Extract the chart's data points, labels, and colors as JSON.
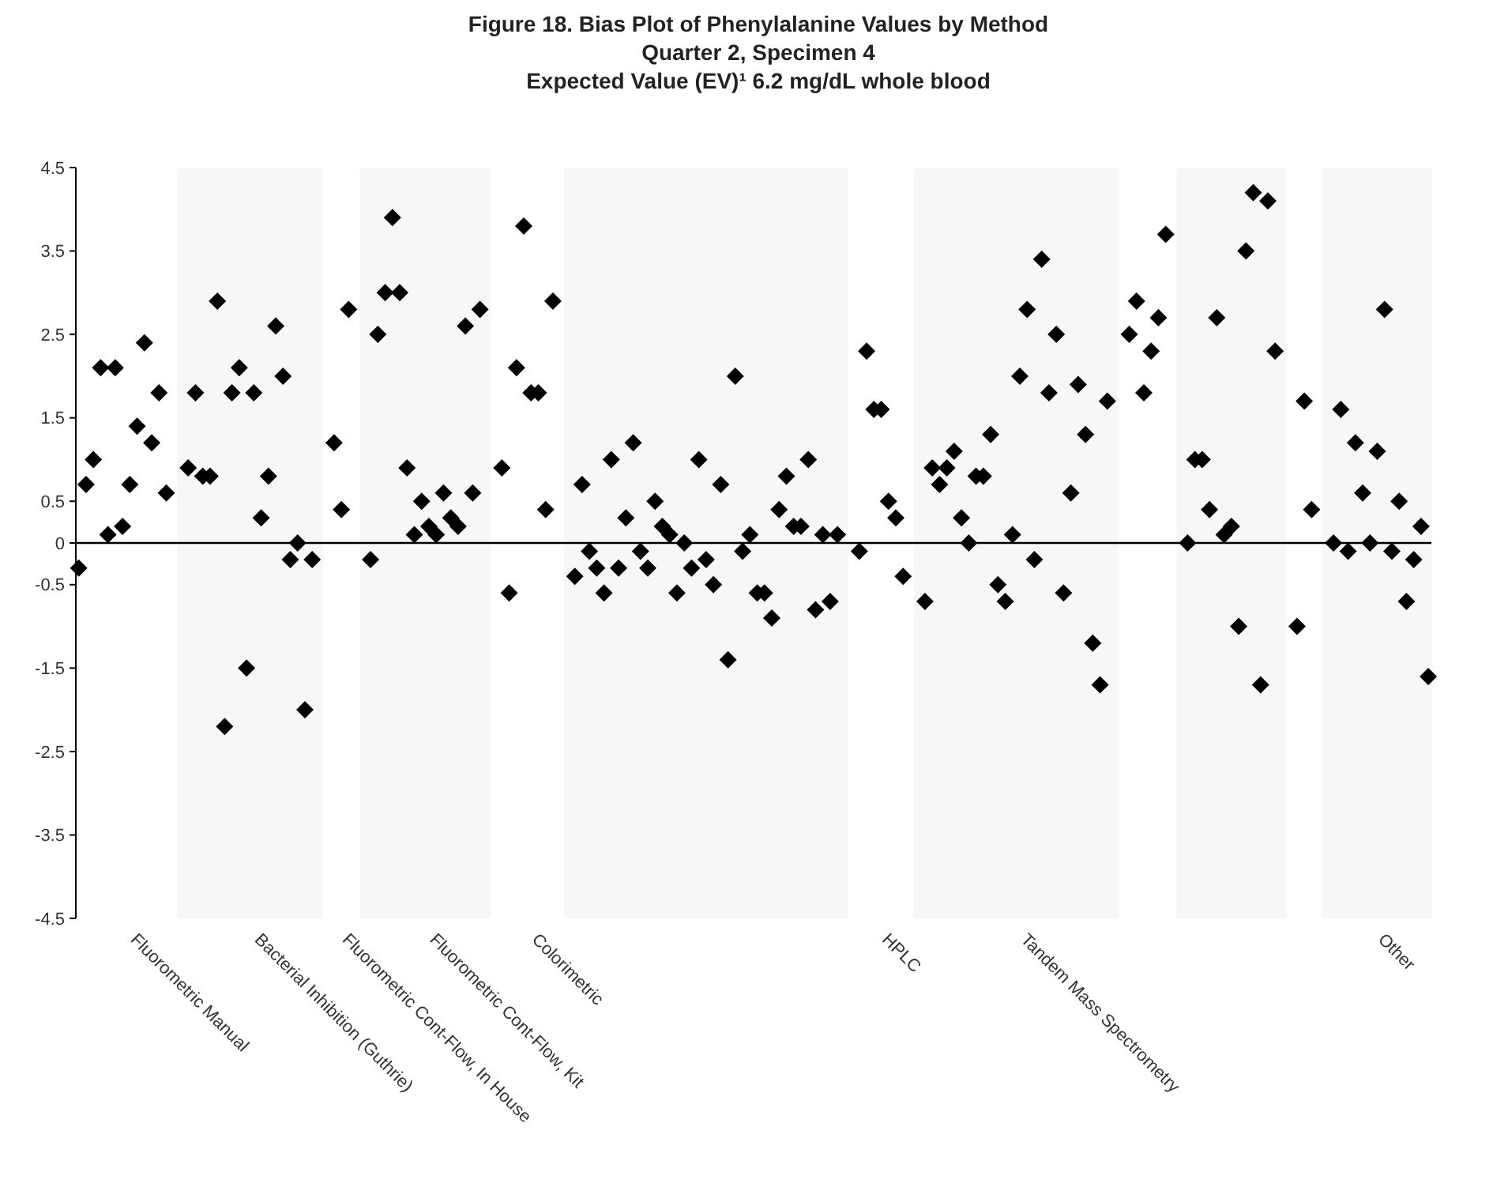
{
  "chart_data": {
    "type": "scatter",
    "title": "Figure 18. Bias Plot of Phenylalanine Values by Method",
    "subtitle": "Quarter 2, Specimen 4\nExpected Value (EV)¹ 6.2 mg/dL whole blood",
    "marker": "diamond",
    "grid": false,
    "categories": [
      null,
      null,
      null,
      null,
      null,
      null,
      null,
      "Fluorometric Manual",
      null,
      null,
      null,
      null,
      null,
      null,
      null,
      null,
      null,
      null,
      null,
      null,
      null,
      null,
      null,
      null,
      "Bacterial Inhibition (Guthrie)",
      null,
      null,
      null,
      null,
      null,
      null,
      null,
      null,
      null,
      null,
      null,
      "Fluorometric Cont-Flow, In House",
      null,
      null,
      null,
      null,
      null,
      null,
      null,
      null,
      null,
      null,
      null,
      "Fluorometric Cont-Flow, Kit",
      null,
      null,
      null,
      null,
      null,
      null,
      null,
      null,
      null,
      null,
      null,
      null,
      null,
      "Colorimetric",
      null,
      null,
      null,
      null,
      null,
      null,
      null,
      null,
      null,
      null,
      null,
      null,
      null,
      null,
      null,
      null,
      null,
      null,
      null,
      null,
      null,
      null,
      null,
      null,
      null,
      null,
      null,
      null,
      null,
      null,
      null,
      null,
      null,
      null,
      null,
      null,
      null,
      null,
      null,
      null,
      null,
      null,
      null,
      null,
      null,
      null,
      null,
      "HPLC",
      null,
      null,
      null,
      null,
      null,
      null,
      null,
      null,
      null,
      null,
      null,
      null,
      null,
      null,
      null,
      null,
      null,
      null,
      "Tandem Mass Spectrometry",
      null,
      null,
      null,
      null,
      null,
      null,
      null,
      null,
      null,
      null,
      null,
      null,
      null,
      null,
      null,
      null,
      null,
      null,
      null,
      null,
      null,
      null,
      null,
      null,
      null,
      null,
      null,
      null,
      null,
      null,
      null,
      null,
      null,
      null,
      null,
      null,
      null,
      null,
      null,
      null,
      null,
      null,
      null,
      null,
      null,
      null,
      null,
      null,
      "Other",
      null,
      null,
      null,
      null,
      null,
      null,
      null
    ],
    "ylim": [
      -4.5,
      4.5
    ],
    "yticks": [
      -4.5,
      -3.5,
      -2.5,
      -1.5,
      -0.5,
      0,
      0.5,
      1.5,
      2.5,
      3.5,
      4.5
    ],
    "ref_lines": [
      {
        "axis": "y",
        "value": 0,
        "color": "#000000"
      }
    ],
    "series": [
      {
        "color": "#000000",
        "values": [
          -0.3,
          0.7,
          1,
          2.1,
          0.1,
          2.1,
          0.2,
          0.7,
          1.4,
          2.4,
          1.2,
          1.8,
          0.6,
          null,
          null,
          0.9,
          1.8,
          0.8,
          0.8,
          2.9,
          -2.2,
          1.8,
          2.1,
          -1.5,
          1.8,
          0.3,
          0.8,
          2.6,
          2,
          -0.2,
          0,
          -2,
          -0.2,
          null,
          null,
          1.2,
          0.4,
          2.8,
          null,
          null,
          -0.2,
          2.5,
          3,
          3.9,
          3,
          0.9,
          0.1,
          0.5,
          0.2,
          0.1,
          0.6,
          0.3,
          0.2,
          2.6,
          0.6,
          2.8,
          null,
          null,
          0.9,
          -0.6,
          2.1,
          3.8,
          1.8,
          1.8,
          0.4,
          2.9,
          null,
          null,
          -0.4,
          0.7,
          -0.1,
          -0.3,
          -0.6,
          1,
          -0.3,
          0.3,
          1.2,
          -0.1,
          -0.3,
          0.5,
          0.2,
          0.1,
          -0.6,
          0,
          -0.3,
          1,
          -0.2,
          -0.5,
          0.7,
          -1.4,
          2,
          -0.1,
          0.1,
          -0.6,
          -0.6,
          -0.9,
          0.4,
          0.8,
          0.2,
          0.2,
          1,
          -0.8,
          0.1,
          -0.7,
          0.1,
          null,
          null,
          -0.1,
          2.3,
          1.6,
          1.6,
          0.5,
          0.3,
          -0.4,
          null,
          null,
          -0.7,
          0.9,
          0.7,
          0.9,
          1.1,
          0.3,
          0,
          0.8,
          0.8,
          1.3,
          -0.5,
          -0.7,
          0.1,
          2,
          2.8,
          -0.2,
          3.4,
          1.8,
          2.5,
          -0.6,
          0.6,
          1.9,
          1.3,
          -1.2,
          -1.7,
          1.7,
          null,
          null,
          2.5,
          2.9,
          1.8,
          2.3,
          2.7,
          3.7,
          null,
          null,
          0,
          1,
          1,
          0.4,
          2.7,
          0.1,
          0.2,
          -1,
          3.5,
          4.2,
          -1.7,
          4.1,
          2.3,
          null,
          null,
          -1,
          1.7,
          0.4,
          null,
          null,
          0,
          1.6,
          -0.1,
          1.2,
          0.6,
          0,
          1.1,
          2.8,
          -0.1,
          0.5,
          -0.7,
          -0.2,
          0.2,
          -1.6
        ]
      }
    ]
  }
}
